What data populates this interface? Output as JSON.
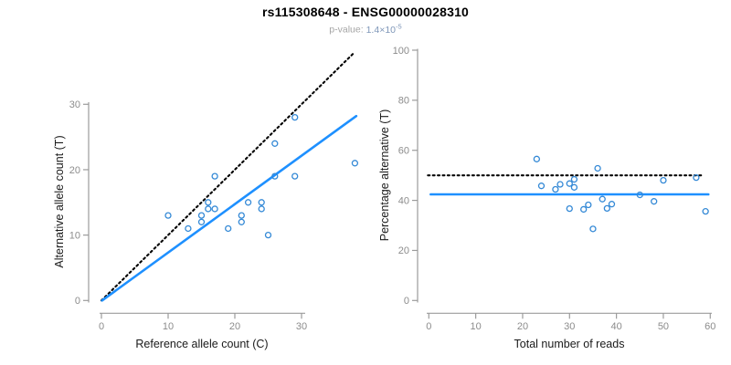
{
  "header": {
    "title": "rs115308648 - ENSG00000028310",
    "subtitle_prefix": "p-value: ",
    "pvalue_mantissa": "1.4",
    "times_symbol": "×",
    "pvalue_base": "10",
    "pvalue_exponent": "-5"
  },
  "colors": {
    "line_blue": "#1E90FF",
    "point_blue": "#3489D6",
    "dotted_black": "#000000",
    "axis_line": "#9b9b9b",
    "tick_label": "#8c8c8c",
    "axis_title": "#1a1a1a"
  },
  "chart_data": [
    {
      "id": "allele-count-scatter",
      "type": "scatter",
      "xlabel": "Reference allele count (C)",
      "ylabel": "Alternative allele count (T)",
      "xticks": [
        0,
        10,
        20,
        30
      ],
      "yticks": [
        0,
        10,
        20,
        30
      ],
      "xlim": [
        0,
        38.6
      ],
      "ylim": [
        0,
        38.3
      ],
      "points": [
        [
          10,
          13
        ],
        [
          13,
          11
        ],
        [
          15,
          12
        ],
        [
          15,
          13
        ],
        [
          16,
          14
        ],
        [
          16,
          15
        ],
        [
          17,
          14
        ],
        [
          17,
          19
        ],
        [
          19,
          11
        ],
        [
          21,
          12
        ],
        [
          21,
          13
        ],
        [
          22,
          15
        ],
        [
          24,
          14
        ],
        [
          24,
          15
        ],
        [
          25,
          10
        ],
        [
          26,
          19
        ],
        [
          26,
          24
        ],
        [
          29,
          19
        ],
        [
          29,
          28
        ],
        [
          38,
          21
        ]
      ],
      "lines": [
        {
          "name": "identity-line",
          "style": "dotted",
          "color": "black",
          "x1": 0,
          "y1": 0,
          "x2": 38,
          "y2": 38
        },
        {
          "name": "fit-line",
          "style": "solid",
          "color": "blue",
          "x1": 0.1,
          "y1": 0,
          "x2": 38.2,
          "y2": 28.2
        }
      ]
    },
    {
      "id": "percentage-vs-reads-scatter",
      "type": "scatter",
      "xlabel": "Total number of reads",
      "ylabel": "Percentage alternative (T)",
      "xticks": [
        0,
        10,
        20,
        30,
        40,
        50,
        60
      ],
      "yticks": [
        0,
        20,
        40,
        60,
        80,
        100
      ],
      "xlim": [
        0,
        62
      ],
      "ylim": [
        0,
        100
      ],
      "points": [
        [
          23,
          56.5
        ],
        [
          24,
          45.8
        ],
        [
          27,
          44.4
        ],
        [
          28,
          46.4
        ],
        [
          30,
          36.7
        ],
        [
          30,
          46.7
        ],
        [
          31,
          45.2
        ],
        [
          31,
          48.4
        ],
        [
          33,
          36.4
        ],
        [
          34,
          38.2
        ],
        [
          35,
          28.6
        ],
        [
          36,
          52.8
        ],
        [
          37,
          40.5
        ],
        [
          38,
          36.8
        ],
        [
          39,
          38.5
        ],
        [
          45,
          42.2
        ],
        [
          48,
          39.6
        ],
        [
          50,
          48.0
        ],
        [
          57,
          49.1
        ],
        [
          59,
          35.6
        ]
      ],
      "lines": [
        {
          "name": "fifty-percent-line",
          "style": "dotted",
          "color": "black",
          "x1": -0.2,
          "y1": 50,
          "x2": 58.3,
          "y2": 50
        },
        {
          "name": "mean-percentage-line",
          "style": "solid",
          "color": "blue",
          "x1": 0.4,
          "y1": 42.4,
          "x2": 59.6,
          "y2": 42.4
        }
      ]
    }
  ]
}
